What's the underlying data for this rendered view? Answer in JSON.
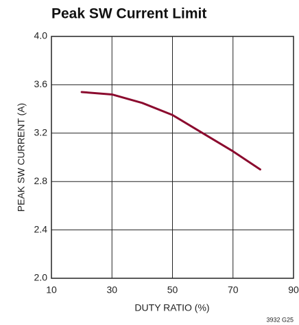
{
  "chart_data": {
    "type": "line",
    "title": "Peak SW Current Limit",
    "xlabel": "DUTY RATIO (%)",
    "ylabel": "PEAK SW CURRENT (A)",
    "annotation": "3932 G25",
    "x": [
      20,
      30,
      40,
      50,
      60,
      70,
      79
    ],
    "series": [
      {
        "name": "Peak SW Current",
        "color": "#8b0a2e",
        "values": [
          3.54,
          3.52,
          3.45,
          3.35,
          3.2,
          3.05,
          2.9
        ]
      }
    ],
    "xlim": [
      10,
      90
    ],
    "xticks": [
      10,
      30,
      50,
      70,
      90
    ],
    "ylim": [
      2,
      4
    ],
    "yticks": [
      {
        "value": 2,
        "label": "2.0"
      },
      {
        "value": 2.4,
        "label": "2.4"
      },
      {
        "value": 2.8,
        "label": "2.8"
      },
      {
        "value": 3.2,
        "label": "3.2"
      },
      {
        "value": 3.6,
        "label": "3.6"
      },
      {
        "value": 4,
        "label": "4.0"
      }
    ],
    "grid": true
  }
}
